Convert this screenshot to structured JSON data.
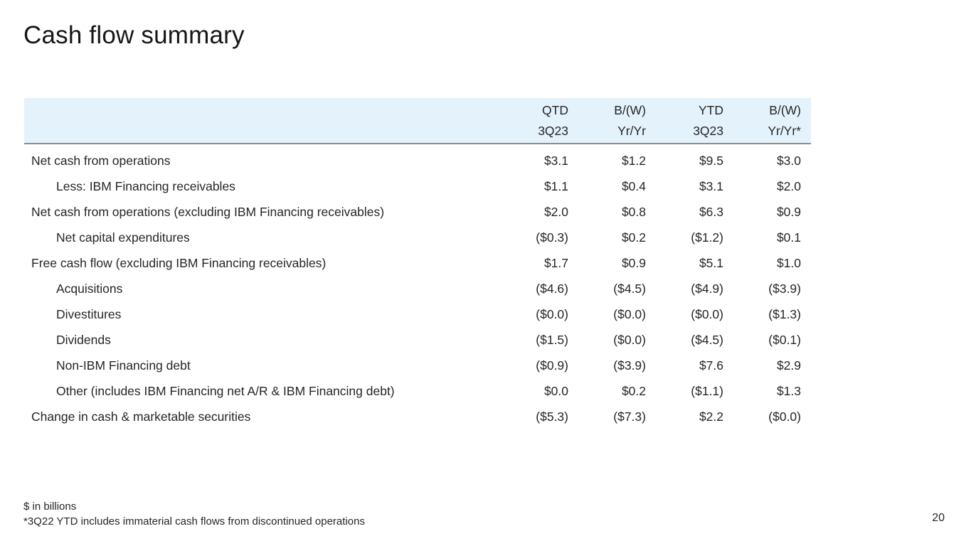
{
  "slide": {
    "title": "Cash flow summary",
    "page_number": "20",
    "footnote_units": "$ in billions",
    "footnote_note": "*3Q22 YTD includes immaterial cash flows from discontinued operations"
  },
  "table": {
    "columns": [
      {
        "line1": "QTD",
        "line2": "3Q23"
      },
      {
        "line1": "B/(W)",
        "line2": "Yr/Yr"
      },
      {
        "line1": "YTD",
        "line2": "3Q23"
      },
      {
        "line1": "B/(W)",
        "line2": "Yr/Yr*"
      }
    ],
    "rows": [
      {
        "label": "Net cash from operations",
        "indent": false,
        "values": [
          "$3.1",
          "$1.2",
          "$9.5",
          "$3.0"
        ]
      },
      {
        "label": "Less: IBM Financing receivables",
        "indent": true,
        "values": [
          "$1.1",
          "$0.4",
          "$3.1",
          "$2.0"
        ]
      },
      {
        "label": "Net cash from operations (excluding IBM Financing receivables)",
        "indent": false,
        "values": [
          "$2.0",
          "$0.8",
          "$6.3",
          "$0.9"
        ]
      },
      {
        "label": "Net capital expenditures",
        "indent": true,
        "values": [
          "($0.3)",
          "$0.2",
          "($1.2)",
          "$0.1"
        ]
      },
      {
        "label": "Free cash flow (excluding IBM Financing receivables)",
        "indent": false,
        "values": [
          "$1.7",
          "$0.9",
          "$5.1",
          "$1.0"
        ]
      },
      {
        "label": "Acquisitions",
        "indent": true,
        "values": [
          "($4.6)",
          "($4.5)",
          "($4.9)",
          "($3.9)"
        ]
      },
      {
        "label": "Divestitures",
        "indent": true,
        "values": [
          "($0.0)",
          "($0.0)",
          "($0.0)",
          "($1.3)"
        ]
      },
      {
        "label": "Dividends",
        "indent": true,
        "values": [
          "($1.5)",
          "($0.0)",
          "($4.5)",
          "($0.1)"
        ]
      },
      {
        "label": "Non-IBM Financing debt",
        "indent": true,
        "values": [
          "($0.9)",
          "($3.9)",
          "$7.6",
          "$2.9"
        ]
      },
      {
        "label": "Other (includes IBM Financing net A/R & IBM Financing debt)",
        "indent": true,
        "values": [
          "$0.0",
          "$0.2",
          "($1.1)",
          "$1.3"
        ]
      },
      {
        "label": "Change in cash & marketable securities",
        "indent": false,
        "values": [
          "($5.3)",
          "($7.3)",
          "$2.2",
          "($0.0)"
        ]
      }
    ],
    "colors": {
      "header_bg": "#e4f2fb",
      "header_rule": "#888c8f",
      "text": "#262626"
    }
  }
}
